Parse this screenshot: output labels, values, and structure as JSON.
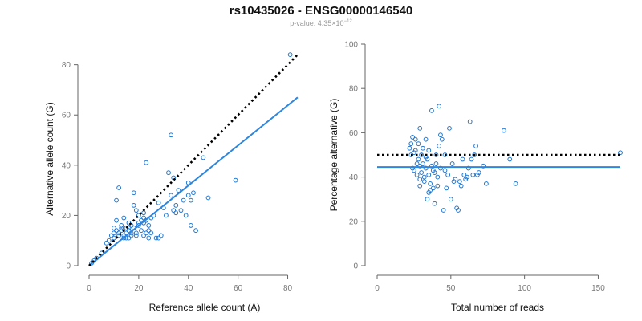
{
  "header": {
    "title": "rs10435026 - ENSG00000146540",
    "pvalue_prefix": "p-value: 4.35×10",
    "pvalue_exponent": "−12"
  },
  "colors": {
    "points": "#1f77d0",
    "fit_line": "#2e86de",
    "reference_line": "#000000",
    "axis": "#666666",
    "tick_text": "#777777"
  },
  "chart_data": [
    {
      "type": "scatter",
      "title": "",
      "xlabel": "Reference allele count (A)",
      "ylabel": "Alternative allele count (G)",
      "xlim": [
        0,
        85
      ],
      "ylim": [
        0,
        85
      ],
      "xticks": [
        0,
        20,
        40,
        60,
        80
      ],
      "yticks": [
        0,
        20,
        40,
        60,
        80
      ],
      "grid": false,
      "points": [
        [
          1,
          1
        ],
        [
          2,
          2
        ],
        [
          3,
          3
        ],
        [
          5,
          5
        ],
        [
          7,
          9
        ],
        [
          8,
          10
        ],
        [
          9,
          12
        ],
        [
          10,
          13
        ],
        [
          10,
          11
        ],
        [
          10,
          15
        ],
        [
          11,
          14
        ],
        [
          11,
          18
        ],
        [
          11,
          26
        ],
        [
          12,
          31
        ],
        [
          12,
          13
        ],
        [
          12,
          12
        ],
        [
          13,
          15
        ],
        [
          13,
          16
        ],
        [
          13,
          14
        ],
        [
          14,
          11
        ],
        [
          14,
          12
        ],
        [
          14,
          19
        ],
        [
          15,
          15
        ],
        [
          15,
          13
        ],
        [
          15,
          11
        ],
        [
          16,
          15
        ],
        [
          16,
          14
        ],
        [
          16,
          17
        ],
        [
          16,
          11
        ],
        [
          17,
          13
        ],
        [
          17,
          12
        ],
        [
          17,
          16
        ],
        [
          18,
          15
        ],
        [
          18,
          24
        ],
        [
          18,
          29
        ],
        [
          19,
          13
        ],
        [
          19,
          12
        ],
        [
          19,
          22
        ],
        [
          20,
          17
        ],
        [
          20,
          16
        ],
        [
          20,
          20
        ],
        [
          21,
          18
        ],
        [
          21,
          14
        ],
        [
          22,
          19
        ],
        [
          22,
          17
        ],
        [
          22,
          21
        ],
        [
          22,
          12
        ],
        [
          23,
          41
        ],
        [
          23,
          18
        ],
        [
          23,
          13
        ],
        [
          24,
          14
        ],
        [
          24,
          11
        ],
        [
          24,
          16
        ],
        [
          25,
          13
        ],
        [
          25,
          19
        ],
        [
          26,
          20
        ],
        [
          27,
          11
        ],
        [
          28,
          11
        ],
        [
          28,
          25
        ],
        [
          29,
          12
        ],
        [
          30,
          23
        ],
        [
          31,
          20
        ],
        [
          32,
          37
        ],
        [
          33,
          52
        ],
        [
          33,
          28
        ],
        [
          34,
          22
        ],
        [
          34,
          35
        ],
        [
          35,
          21
        ],
        [
          35,
          24
        ],
        [
          36,
          30
        ],
        [
          37,
          22
        ],
        [
          38,
          26
        ],
        [
          39,
          20
        ],
        [
          40,
          33
        ],
        [
          40,
          28
        ],
        [
          41,
          26
        ],
        [
          41,
          16
        ],
        [
          42,
          29
        ],
        [
          43,
          14
        ],
        [
          46,
          43
        ],
        [
          48,
          27
        ],
        [
          59,
          34
        ],
        [
          81,
          84
        ]
      ],
      "series": [
        {
          "kind": "fit",
          "x": [
            0,
            84
          ],
          "y": [
            0,
            67
          ]
        },
        {
          "kind": "reference",
          "x": [
            0,
            84
          ],
          "y": [
            0,
            84
          ]
        }
      ]
    },
    {
      "type": "scatter",
      "title": "",
      "xlabel": "Total number of reads",
      "ylabel": "Percentage alternative (G)",
      "xlim": [
        0,
        165
      ],
      "ylim": [
        0,
        100
      ],
      "xticks": [
        0,
        50,
        100,
        150
      ],
      "yticks": [
        0,
        20,
        40,
        60,
        80,
        100
      ],
      "grid": false,
      "points": [
        [
          22,
          53
        ],
        [
          23,
          50
        ],
        [
          23,
          55
        ],
        [
          24,
          58
        ],
        [
          24,
          44
        ],
        [
          25,
          51
        ],
        [
          25,
          43
        ],
        [
          26,
          57
        ],
        [
          26,
          52
        ],
        [
          27,
          46
        ],
        [
          27,
          41
        ],
        [
          28,
          55
        ],
        [
          28,
          48
        ],
        [
          29,
          62
        ],
        [
          29,
          45
        ],
        [
          29,
          36
        ],
        [
          29,
          39
        ],
        [
          30,
          50
        ],
        [
          30,
          42
        ],
        [
          31,
          53
        ],
        [
          31,
          46
        ],
        [
          32,
          40
        ],
        [
          32,
          38
        ],
        [
          33,
          57
        ],
        [
          33,
          44
        ],
        [
          33,
          49
        ],
        [
          34,
          48
        ],
        [
          34,
          30
        ],
        [
          35,
          52
        ],
        [
          35,
          41
        ],
        [
          35,
          33
        ],
        [
          36,
          37
        ],
        [
          36,
          34
        ],
        [
          37,
          70
        ],
        [
          37,
          45
        ],
        [
          38,
          35
        ],
        [
          38,
          43
        ],
        [
          39,
          28
        ],
        [
          39,
          42
        ],
        [
          40,
          50
        ],
        [
          40,
          46
        ],
        [
          41,
          36
        ],
        [
          41,
          40
        ],
        [
          42,
          72
        ],
        [
          42,
          54
        ],
        [
          43,
          44
        ],
        [
          43,
          59
        ],
        [
          44,
          57
        ],
        [
          45,
          25
        ],
        [
          46,
          50
        ],
        [
          46,
          43
        ],
        [
          47,
          35
        ],
        [
          48,
          41
        ],
        [
          49,
          62
        ],
        [
          50,
          30
        ],
        [
          51,
          46
        ],
        [
          52,
          38
        ],
        [
          53,
          39
        ],
        [
          54,
          26
        ],
        [
          55,
          25
        ],
        [
          56,
          38
        ],
        [
          57,
          36
        ],
        [
          58,
          48
        ],
        [
          59,
          41
        ],
        [
          60,
          39
        ],
        [
          61,
          40
        ],
        [
          62,
          44
        ],
        [
          63,
          65
        ],
        [
          64,
          48
        ],
        [
          65,
          41
        ],
        [
          66,
          50
        ],
        [
          67,
          54
        ],
        [
          68,
          41
        ],
        [
          69,
          42
        ],
        [
          72,
          45
        ],
        [
          74,
          37
        ],
        [
          86,
          61
        ],
        [
          90,
          48
        ],
        [
          94,
          37
        ],
        [
          165,
          51
        ]
      ],
      "series": [
        {
          "kind": "fit",
          "x": [
            0,
            165
          ],
          "y": [
            44.5,
            44.5
          ]
        },
        {
          "kind": "reference",
          "x": [
            0,
            165
          ],
          "y": [
            50,
            50
          ]
        }
      ]
    }
  ]
}
